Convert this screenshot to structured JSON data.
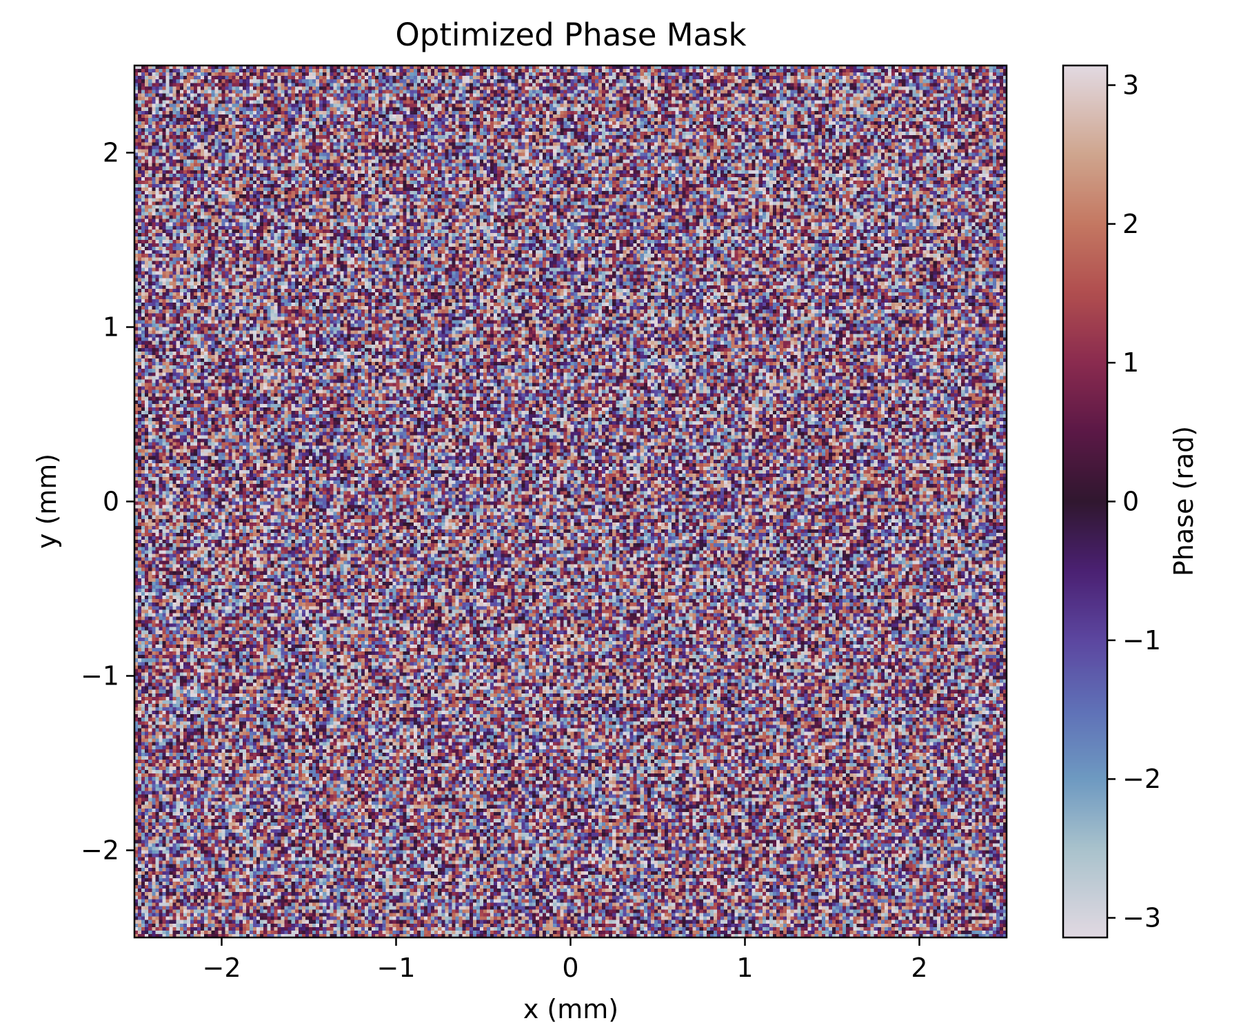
{
  "chart_data": {
    "type": "heatmap",
    "title": "Optimized Phase Mask",
    "xlabel": "x (mm)",
    "ylabel": "y (mm)",
    "xlim": [
      -2.5,
      2.5
    ],
    "ylim": [
      -2.5,
      2.5
    ],
    "x_ticks": [
      -2,
      -1,
      0,
      1,
      2
    ],
    "x_tick_labels": [
      "−2",
      "−1",
      "0",
      "1",
      "2"
    ],
    "y_ticks": [
      -2,
      -1,
      0,
      1,
      2
    ],
    "y_tick_labels": [
      "−2",
      "−1",
      "0",
      "1",
      "2"
    ],
    "grid_resolution": [
      250,
      250
    ],
    "value_distribution": "uniform random phase in [-π, π]",
    "colormap": "twilight",
    "colormap_stops": [
      {
        "value": -3.1416,
        "color": "#e2d9e2"
      },
      {
        "value": -2.5,
        "color": "#a9c2cc"
      },
      {
        "value": -2.0,
        "color": "#6e9ac1"
      },
      {
        "value": -1.5,
        "color": "#5f71b7"
      },
      {
        "value": -1.0,
        "color": "#5c47a0"
      },
      {
        "value": -0.5,
        "color": "#4b2173"
      },
      {
        "value": 0.0,
        "color": "#30172f"
      },
      {
        "value": 0.5,
        "color": "#5b1846"
      },
      {
        "value": 1.0,
        "color": "#8a2b4f"
      },
      {
        "value": 1.5,
        "color": "#b04e4f"
      },
      {
        "value": 2.0,
        "color": "#c47862"
      },
      {
        "value": 2.5,
        "color": "#cfa58e"
      },
      {
        "value": 3.1416,
        "color": "#e2d9e2"
      }
    ],
    "colorbar": {
      "label": "Phase (rad)",
      "range": [
        -3.1416,
        3.1416
      ],
      "ticks": [
        -3,
        -2,
        -1,
        0,
        1,
        2,
        3
      ],
      "tick_labels": [
        "−3",
        "−2",
        "−1",
        "0",
        "1",
        "2",
        "3"
      ]
    },
    "grid": false
  }
}
